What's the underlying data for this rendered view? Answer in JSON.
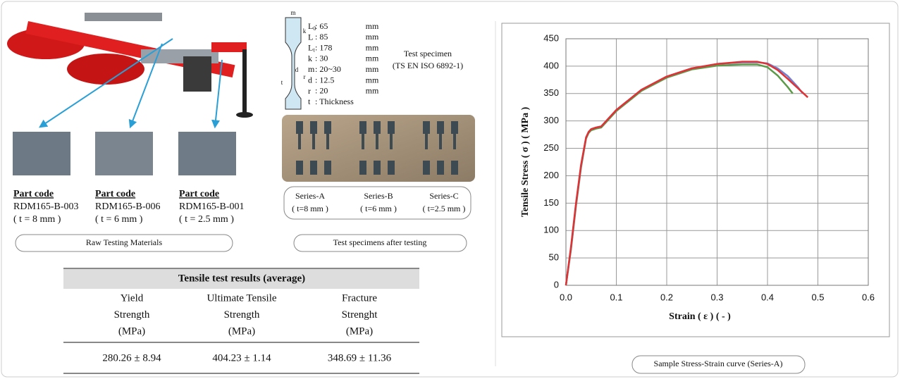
{
  "parts": [
    {
      "label": "Part code",
      "code": "RDM165-B-003",
      "thickness": "( t = 8 mm )"
    },
    {
      "label": "Part code",
      "code": "RDM165-B-006",
      "thickness": "( t = 6 mm )"
    },
    {
      "label": "Part code",
      "code": "RDM165-B-001",
      "thickness": "( t = 2.5 mm )"
    }
  ],
  "raw_caption": "Raw Testing Materials",
  "drawing_labels": [
    "m",
    "k",
    "d",
    "r",
    "t"
  ],
  "specimen_dims": [
    {
      "symbol": "L",
      "sub": "0",
      "value": ": 65",
      "unit": "mm"
    },
    {
      "symbol": "L",
      "sub": "",
      "value": ": 85",
      "unit": "mm"
    },
    {
      "symbol": "L",
      "sub": "t",
      "value": ": 178",
      "unit": "mm"
    },
    {
      "symbol": "k",
      "sub": "",
      "value": ": 30",
      "unit": "mm"
    },
    {
      "symbol": "m",
      "sub": "",
      "value": ": 20~30",
      "unit": "mm"
    },
    {
      "symbol": "d",
      "sub": "",
      "value": ": 12.5",
      "unit": "mm"
    },
    {
      "symbol": "r",
      "sub": "",
      "value": ": 20",
      "unit": "mm"
    },
    {
      "symbol": "t",
      "sub": "",
      "value": ": Thickness",
      "unit": ""
    }
  ],
  "specimen_title": "Test specimen",
  "specimen_standard": "(TS EN ISO 6892-1)",
  "series_labels": [
    {
      "name": "Series-A",
      "thickness": "( t=8 mm )"
    },
    {
      "name": "Series-B",
      "thickness": "( t=6 mm )"
    },
    {
      "name": "Series-C",
      "thickness": "( t=2.5 mm )"
    }
  ],
  "tested_caption": "Test specimens after testing",
  "table": {
    "title": "Tensile test results (average)",
    "headers": [
      [
        "Yield",
        "Strength",
        "(MPa)"
      ],
      [
        "Ultimate Tensile",
        "Strength",
        "(MPa)"
      ],
      [
        "Fracture",
        "Strenght",
        "(MPa)"
      ]
    ],
    "rows": [
      [
        "280.26 ± 8.94",
        "404.23 ± 1.14",
        "348.69 ± 11.36"
      ]
    ]
  },
  "chart_caption": "Sample Stress-Strain curve (Series-A)",
  "chart_data": {
    "type": "line",
    "x_label": "Strain ( ε ) ( - )",
    "y_label": "Tensile Stress  ( σ ) ( MPa )",
    "xlim": [
      0,
      0.6
    ],
    "ylim": [
      0,
      450
    ],
    "xticks": [
      {
        "value": 0,
        "label": "0.0"
      },
      0.1,
      0.2,
      0.3,
      0.4,
      0.5,
      0.6
    ],
    "yticks": [
      0,
      50,
      100,
      150,
      200,
      250,
      300,
      350,
      400,
      450
    ],
    "grid": true,
    "series": [
      {
        "color": "#5b9b48",
        "x": [
          0,
          0.01,
          0.02,
          0.03,
          0.04,
          0.045,
          0.05,
          0.06,
          0.07,
          0.08,
          0.1,
          0.15,
          0.2,
          0.25,
          0.3,
          0.35,
          0.38,
          0.4,
          0.42,
          0.44,
          0.45
        ],
        "values": [
          0,
          65,
          145,
          215,
          268,
          278,
          283,
          286,
          288,
          298,
          318,
          355,
          379,
          394,
          401,
          403,
          403,
          398,
          383,
          362,
          350
        ]
      },
      {
        "color": "#7080d4",
        "x": [
          0,
          0.01,
          0.02,
          0.03,
          0.04,
          0.045,
          0.05,
          0.06,
          0.07,
          0.08,
          0.1,
          0.15,
          0.2,
          0.25,
          0.3,
          0.35,
          0.38,
          0.4,
          0.42,
          0.44,
          0.46,
          0.47
        ],
        "values": [
          0,
          68,
          148,
          218,
          270,
          280,
          285,
          288,
          290,
          300,
          320,
          357,
          381,
          396,
          404,
          407,
          407,
          405,
          396,
          382,
          362,
          350
        ]
      },
      {
        "color": "#e03232",
        "x": [
          0,
          0.01,
          0.02,
          0.03,
          0.04,
          0.045,
          0.05,
          0.06,
          0.07,
          0.08,
          0.1,
          0.15,
          0.2,
          0.25,
          0.3,
          0.35,
          0.38,
          0.4,
          0.42,
          0.44,
          0.46,
          0.48
        ],
        "values": [
          0,
          70,
          150,
          220,
          270,
          280,
          285,
          288,
          290,
          300,
          320,
          357,
          381,
          396,
          404,
          408,
          408,
          404,
          393,
          377,
          360,
          343
        ]
      }
    ]
  }
}
